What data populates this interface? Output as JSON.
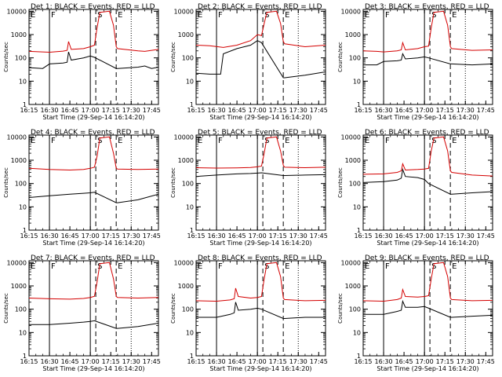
{
  "chart_data": {
    "type": "line",
    "colors": {
      "events": "#000000",
      "lld": "#d40000",
      "axes": "#000000",
      "background": "#ffffff"
    },
    "shared": {
      "xlabel": "Start Time (29-Sep-14 16:14:20)",
      "ylabel": "Counts/sec",
      "yscale": "log",
      "xlim": [
        "16:15",
        "17:50"
      ],
      "ylim": [
        1,
        12000
      ],
      "x_ticks": [
        "16:15",
        "16:30",
        "16:45",
        "17:00",
        "17:15",
        "17:30",
        "17:45"
      ],
      "y_ticks": [
        "1",
        "10",
        "100",
        "1000",
        "10000"
      ],
      "legend_text": "BLACK = Events, RED = LLD",
      "markers": [
        {
          "label": "E",
          "time": "16:15",
          "style": "dotted"
        },
        {
          "label": "F",
          "time": "16:30",
          "style": "solid"
        },
        {
          "label": "S",
          "time": "17:04",
          "style": "dashed"
        },
        {
          "label": "E",
          "time": "17:19",
          "style": "dashed"
        }
      ],
      "extra_lines": [
        {
          "time": "17:00",
          "style": "solid"
        },
        {
          "time": "17:30",
          "style": "dotted"
        }
      ]
    },
    "panels": [
      {
        "title": "Det 1",
        "legend": "BLACK = Events, RED = LLD",
        "series": [
          {
            "name": "Events",
            "color": "#000000",
            "x": [
              "16:15",
              "16:25",
              "16:30",
              "16:40",
              "16:43",
              "16:44",
              "16:46",
              "16:55",
              "17:00",
              "17:03",
              "17:19",
              "17:20",
              "17:35",
              "17:40",
              "17:45",
              "17:50"
            ],
            "y": [
              38,
              35,
              55,
              60,
              65,
              180,
              80,
              100,
              120,
              105,
              35,
              35,
              40,
              45,
              35,
              40
            ]
          },
          {
            "name": "LLD",
            "color": "#d40000",
            "x": [
              "16:15",
              "16:25",
              "16:30",
              "16:40",
              "16:43",
              "16:44",
              "16:46",
              "16:55",
              "17:00",
              "17:03",
              "17:05",
              "17:07",
              "17:14",
              "17:17",
              "17:19",
              "17:20",
              "17:35",
              "17:40",
              "17:45",
              "17:50"
            ],
            "y": [
              190,
              180,
              175,
              195,
              210,
              500,
              230,
              250,
              300,
              350,
              2000,
              9000,
              10000,
              2500,
              300,
              250,
              200,
              190,
              210,
              230
            ]
          }
        ]
      },
      {
        "title": "Det 2",
        "legend": "BLACK = Events, RED = LLD",
        "series": [
          {
            "name": "Events",
            "color": "#000000",
            "x": [
              "16:15",
              "16:25",
              "16:33",
              "16:35",
              "16:45",
              "16:55",
              "17:00",
              "17:03",
              "17:19",
              "17:20",
              "17:35",
              "17:50"
            ],
            "y": [
              22,
              20,
              20,
              150,
              250,
              350,
              550,
              450,
              14,
              14,
              18,
              25
            ]
          },
          {
            "name": "LLD",
            "color": "#d40000",
            "x": [
              "16:15",
              "16:25",
              "16:35",
              "16:45",
              "16:55",
              "17:00",
              "17:03",
              "17:05",
              "17:07",
              "17:14",
              "17:17",
              "17:19",
              "17:20",
              "17:35",
              "17:50"
            ],
            "y": [
              350,
              330,
              280,
              350,
              550,
              1000,
              900,
              3000,
              9000,
              10000,
              3000,
              500,
              400,
              300,
              350
            ]
          }
        ]
      },
      {
        "title": "Det 3",
        "legend": "BLACK = Events, RED = LLD",
        "series": [
          {
            "name": "Events",
            "color": "#000000",
            "x": [
              "16:15",
              "16:25",
              "16:30",
              "16:40",
              "16:43",
              "16:44",
              "16:46",
              "16:55",
              "17:00",
              "17:03",
              "17:19",
              "17:20",
              "17:35",
              "17:50"
            ],
            "y": [
              50,
              50,
              70,
              75,
              80,
              150,
              90,
              100,
              110,
              100,
              55,
              55,
              50,
              55
            ]
          },
          {
            "name": "LLD",
            "color": "#d40000",
            "x": [
              "16:15",
              "16:25",
              "16:30",
              "16:40",
              "16:43",
              "16:44",
              "16:46",
              "16:55",
              "17:00",
              "17:03",
              "17:05",
              "17:07",
              "17:14",
              "17:17",
              "17:19",
              "17:20",
              "17:35",
              "17:50"
            ],
            "y": [
              200,
              190,
              180,
              200,
              220,
              450,
              220,
              250,
              300,
              320,
              2000,
              9000,
              10000,
              2500,
              300,
              250,
              210,
              220
            ]
          }
        ]
      },
      {
        "title": "Det 4",
        "legend": "BLACK = Events, RED = LLD",
        "series": [
          {
            "name": "Events",
            "color": "#000000",
            "x": [
              "16:15",
              "16:30",
              "16:45",
              "16:55",
              "17:00",
              "17:03",
              "17:19",
              "17:20",
              "17:35",
              "17:50"
            ],
            "y": [
              25,
              30,
              35,
              38,
              40,
              42,
              15,
              15,
              20,
              35
            ]
          },
          {
            "name": "LLD",
            "color": "#d40000",
            "x": [
              "16:15",
              "16:30",
              "16:45",
              "16:55",
              "17:00",
              "17:03",
              "17:05",
              "17:07",
              "17:14",
              "17:17",
              "17:19",
              "17:20",
              "17:35",
              "17:50"
            ],
            "y": [
              450,
              400,
              380,
              400,
              450,
              500,
              1500,
              9000,
              10000,
              2000,
              450,
              420,
              400,
              420
            ]
          }
        ]
      },
      {
        "title": "Det 5",
        "legend": "BLACK = Events, RED = LLD",
        "series": [
          {
            "name": "Events",
            "color": "#000000",
            "x": [
              "16:15",
              "16:30",
              "16:45",
              "16:55",
              "17:00",
              "17:03",
              "17:19",
              "17:20",
              "17:35",
              "17:50"
            ],
            "y": [
              200,
              230,
              260,
              270,
              280,
              290,
              220,
              220,
              230,
              240
            ]
          },
          {
            "name": "LLD",
            "color": "#d40000",
            "x": [
              "16:15",
              "16:30",
              "16:45",
              "16:55",
              "17:00",
              "17:03",
              "17:05",
              "17:07",
              "17:14",
              "17:17",
              "17:19",
              "17:20",
              "17:35",
              "17:50"
            ],
            "y": [
              480,
              460,
              470,
              490,
              520,
              560,
              2000,
              9000,
              10000,
              2500,
              600,
              500,
              480,
              500
            ]
          }
        ]
      },
      {
        "title": "Det 6",
        "legend": "BLACK = Events, RED = LLD",
        "series": [
          {
            "name": "Events",
            "color": "#000000",
            "x": [
              "16:15",
              "16:30",
              "16:40",
              "16:43",
              "16:44",
              "16:46",
              "16:55",
              "17:00",
              "17:03",
              "17:19",
              "17:20",
              "17:35",
              "17:50"
            ],
            "y": [
              110,
              120,
              140,
              170,
              400,
              200,
              180,
              150,
              100,
              35,
              35,
              40,
              45
            ]
          },
          {
            "name": "LLD",
            "color": "#d40000",
            "x": [
              "16:15",
              "16:30",
              "16:40",
              "16:43",
              "16:44",
              "16:46",
              "16:55",
              "17:00",
              "17:03",
              "17:05",
              "17:07",
              "17:14",
              "17:17",
              "17:19",
              "17:20",
              "17:35",
              "17:50"
            ],
            "y": [
              250,
              260,
              300,
              350,
              700,
              380,
              400,
              420,
              450,
              2500,
              9000,
              10000,
              2500,
              350,
              300,
              230,
              210
            ]
          }
        ]
      },
      {
        "title": "Det 7",
        "legend": "BLACK = Events, RED = LLD",
        "series": [
          {
            "name": "Events",
            "color": "#000000",
            "x": [
              "16:15",
              "16:30",
              "16:45",
              "16:55",
              "17:00",
              "17:03",
              "17:19",
              "17:20",
              "17:35",
              "17:50"
            ],
            "y": [
              22,
              22,
              25,
              28,
              30,
              32,
              15,
              15,
              18,
              25
            ]
          },
          {
            "name": "LLD",
            "color": "#d40000",
            "x": [
              "16:15",
              "16:30",
              "16:45",
              "16:55",
              "17:00",
              "17:03",
              "17:05",
              "17:07",
              "17:14",
              "17:17",
              "17:19",
              "17:20",
              "17:35",
              "17:50"
            ],
            "y": [
              300,
              280,
              270,
              290,
              320,
              360,
              1500,
              9000,
              10000,
              2000,
              350,
              320,
              300,
              320
            ]
          }
        ]
      },
      {
        "title": "Det 8",
        "legend": "BLACK = Events, RED = LLD",
        "series": [
          {
            "name": "Events",
            "color": "#000000",
            "x": [
              "16:15",
              "16:30",
              "16:40",
              "16:43",
              "16:44",
              "16:46",
              "16:55",
              "17:00",
              "17:03",
              "17:19",
              "17:20",
              "17:35",
              "17:50"
            ],
            "y": [
              45,
              45,
              60,
              70,
              200,
              90,
              100,
              110,
              100,
              40,
              40,
              45,
              45
            ]
          },
          {
            "name": "LLD",
            "color": "#d40000",
            "x": [
              "16:15",
              "16:30",
              "16:40",
              "16:43",
              "16:44",
              "16:46",
              "16:55",
              "17:00",
              "17:03",
              "17:05",
              "17:07",
              "17:14",
              "17:17",
              "17:19",
              "17:20",
              "17:35",
              "17:50"
            ],
            "y": [
              230,
              220,
              250,
              280,
              800,
              350,
              300,
              320,
              350,
              2000,
              9000,
              10000,
              2500,
              300,
              260,
              230,
              240
            ]
          }
        ]
      },
      {
        "title": "Det 9",
        "legend": "BLACK = Events, RED = LLD",
        "series": [
          {
            "name": "Events",
            "color": "#000000",
            "x": [
              "16:15",
              "16:30",
              "16:40",
              "16:43",
              "16:44",
              "16:46",
              "16:55",
              "17:00",
              "17:03",
              "17:19",
              "17:20",
              "17:35",
              "17:50"
            ],
            "y": [
              60,
              60,
              80,
              90,
              220,
              120,
              120,
              130,
              110,
              45,
              45,
              50,
              55
            ]
          },
          {
            "name": "LLD",
            "color": "#d40000",
            "x": [
              "16:15",
              "16:30",
              "16:40",
              "16:43",
              "16:44",
              "16:46",
              "16:55",
              "17:00",
              "17:03",
              "17:05",
              "17:07",
              "17:14",
              "17:17",
              "17:19",
              "17:20",
              "17:35",
              "17:50"
            ],
            "y": [
              230,
              220,
              260,
              300,
              700,
              350,
              330,
              350,
              380,
              2000,
              9000,
              10000,
              2500,
              300,
              260,
              230,
              240
            ]
          }
        ]
      }
    ]
  }
}
